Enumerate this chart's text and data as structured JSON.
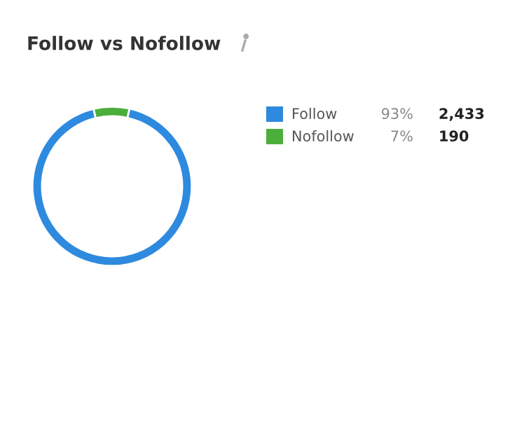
{
  "chart_data": {
    "type": "donut",
    "title": "Follow vs Nofollow",
    "categories": [
      "Follow",
      "Nofollow"
    ],
    "values": [
      2433,
      190
    ],
    "value_labels": [
      "2,433",
      "190"
    ],
    "annotations": [
      "93%",
      "7%"
    ],
    "colors": [
      "#2e8ade",
      "#4cae3a"
    ],
    "legend": "right"
  }
}
